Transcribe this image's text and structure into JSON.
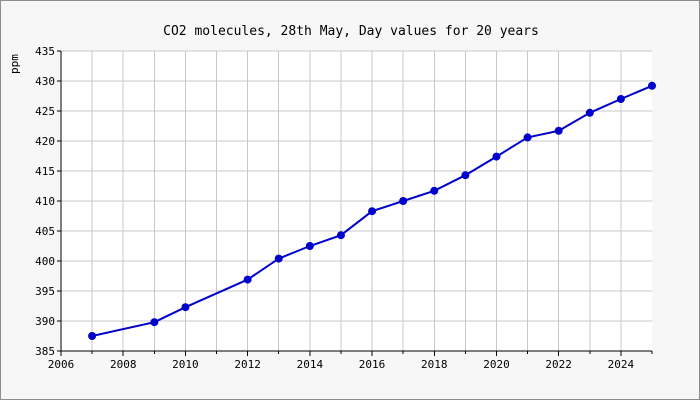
{
  "chart_data": {
    "type": "line",
    "title": "CO2 molecules, 28th May, Day values for 20 years",
    "xlabel": "",
    "ylabel": "ppm",
    "xlim": [
      2006,
      2025
    ],
    "ylim": [
      385,
      435
    ],
    "x_ticks": [
      2006,
      2008,
      2010,
      2012,
      2014,
      2016,
      2018,
      2020,
      2022,
      2024
    ],
    "y_ticks": [
      385,
      390,
      395,
      400,
      405,
      410,
      415,
      420,
      425,
      430,
      435
    ],
    "grid": true,
    "legend": "none",
    "series": [
      {
        "color": "#0000cc",
        "x": [
          2007,
          2009,
          2010,
          2012,
          2013,
          2014,
          2015,
          2016,
          2017,
          2018,
          2019,
          2020,
          2021,
          2022,
          2023,
          2024,
          2025
        ],
        "values": [
          387.5,
          389.8,
          392.3,
          396.9,
          400.4,
          402.5,
          404.3,
          408.3,
          410.0,
          411.7,
          414.3,
          417.4,
          420.6,
          421.7,
          424.7,
          427.0,
          429.2
        ]
      }
    ]
  },
  "colors": {
    "background": "#f7f7f7",
    "plot_background": "#ffffff",
    "grid": "#c8c8c8",
    "axis": "#000000",
    "border": "#8c8c8c"
  }
}
